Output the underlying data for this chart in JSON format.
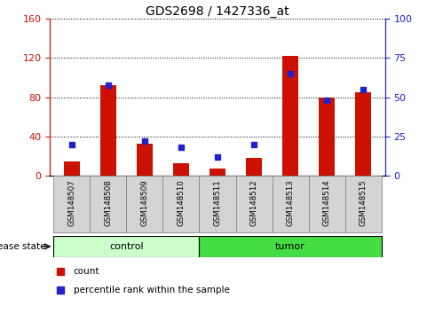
{
  "title": "GDS2698 / 1427336_at",
  "samples": [
    "GSM148507",
    "GSM148508",
    "GSM148509",
    "GSM148510",
    "GSM148511",
    "GSM148512",
    "GSM148513",
    "GSM148514",
    "GSM148515"
  ],
  "count_values": [
    15,
    92,
    33,
    13,
    7,
    18,
    122,
    80,
    85
  ],
  "percentile_values": [
    20,
    58,
    22,
    18,
    12,
    20,
    65,
    48,
    55
  ],
  "n_control": 4,
  "n_tumor": 5,
  "control_color_light": "#ccffcc",
  "control_color": "#88ee88",
  "tumor_color": "#44dd44",
  "bar_color": "#cc1100",
  "dot_color": "#2222cc",
  "left_ylim": [
    0,
    160
  ],
  "right_ylim": [
    0,
    100
  ],
  "left_yticks": [
    0,
    40,
    80,
    120,
    160
  ],
  "right_yticks": [
    0,
    25,
    50,
    75,
    100
  ],
  "bar_width": 0.45,
  "title_fontsize": 10,
  "tick_fontsize": 8,
  "label_fontsize": 7,
  "disease_label_fontsize": 8
}
